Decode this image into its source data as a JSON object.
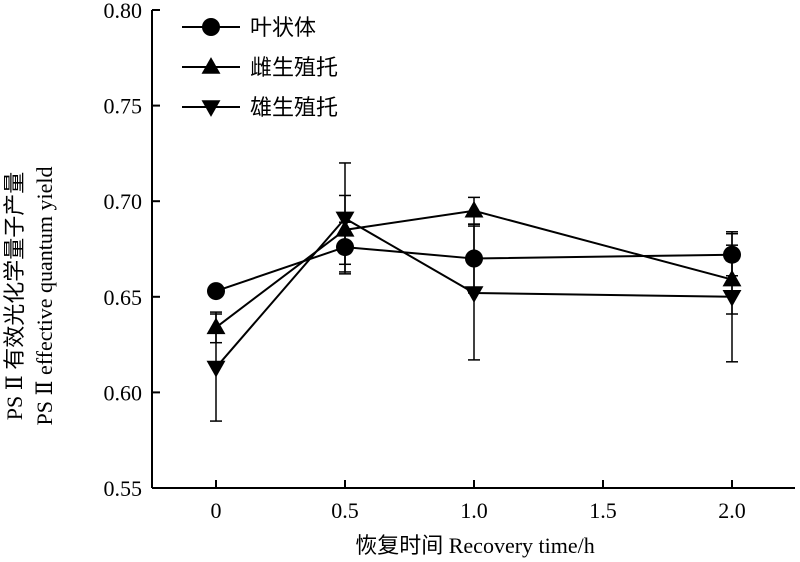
{
  "chart_data": {
    "type": "line",
    "title": "",
    "x": [
      0,
      0.5,
      1.0,
      2.0
    ],
    "x_positions": [
      0,
      1,
      2,
      4
    ],
    "xticks": [
      "0",
      "0.5",
      "1.0",
      "1.5",
      "2.0"
    ],
    "xtick_positions": [
      0,
      1,
      2,
      3,
      4
    ],
    "xlabel": "恢复时间 Recovery time/h",
    "ylabel_line1": "PS Ⅱ 有效光化学量子产量",
    "ylabel_line2": "PS Ⅱ effective quantum yield",
    "ylim": [
      0.55,
      0.8
    ],
    "yticks": [
      "0.55",
      "0.60",
      "0.65",
      "0.70",
      "0.75",
      "0.80"
    ],
    "ytick_values": [
      0.55,
      0.6,
      0.65,
      0.7,
      0.75,
      0.8
    ],
    "grid": false,
    "legend_position": "top-left",
    "series": [
      {
        "name": "叶状体",
        "marker": "circle",
        "color": "#000000",
        "values": [
          0.653,
          0.676,
          0.67,
          0.672
        ],
        "err": [
          0,
          0.013,
          0.018,
          0.011
        ]
      },
      {
        "name": "雌生殖托",
        "marker": "triangle-up",
        "color": "#000000",
        "values": [
          0.634,
          0.685,
          0.695,
          0.659
        ],
        "err": [
          0.008,
          0.018,
          0.007,
          0.018
        ]
      },
      {
        "name": "雄生殖托",
        "marker": "triangle-down",
        "color": "#000000",
        "values": [
          0.613,
          0.691,
          0.652,
          0.65
        ],
        "err": [
          0.028,
          0.029,
          0.035,
          0.034
        ]
      }
    ]
  }
}
